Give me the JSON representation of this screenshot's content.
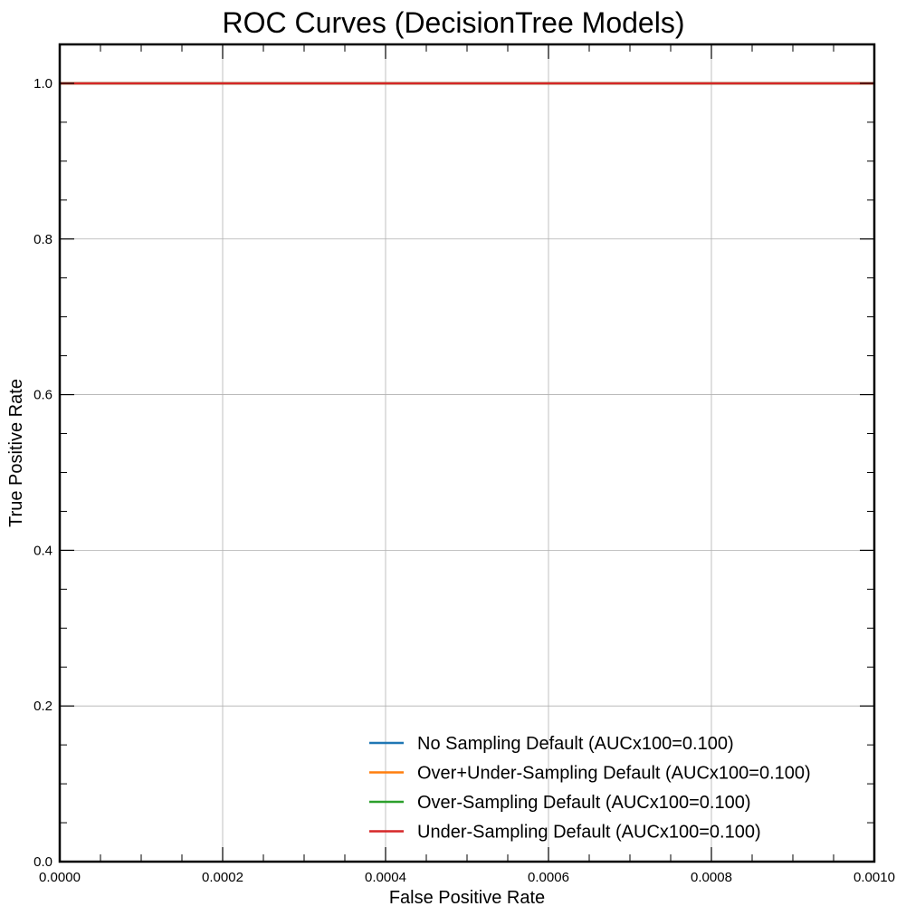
{
  "chart_data": {
    "type": "line",
    "title": "ROC Curves (DecisionTree Models)",
    "xlabel": "False Positive Rate",
    "ylabel": "True Positive Rate",
    "xlim": [
      0.0,
      0.001
    ],
    "ylim": [
      0.0,
      1.05
    ],
    "x_ticks": [
      0.0,
      0.0002,
      0.0004,
      0.0006,
      0.0008,
      0.001
    ],
    "x_tick_labels": [
      "0.0000",
      "0.0002",
      "0.0004",
      "0.0006",
      "0.0008",
      "0.0010"
    ],
    "y_ticks": [
      0.0,
      0.2,
      0.4,
      0.6,
      0.8,
      1.0
    ],
    "y_tick_labels": [
      "0.0",
      "0.2",
      "0.4",
      "0.6",
      "0.8",
      "1.0"
    ],
    "grid": true,
    "legend_position": "lower-right",
    "series": [
      {
        "name": "No Sampling Default (AUCx100=0.100)",
        "color": "#1f77b4",
        "x": [
          0.0,
          0.001
        ],
        "y": [
          1.0,
          1.0
        ]
      },
      {
        "name": "Over+Under-Sampling Default (AUCx100=0.100)",
        "color": "#ff7f0e",
        "x": [
          0.0,
          0.001
        ],
        "y": [
          1.0,
          1.0
        ]
      },
      {
        "name": "Over-Sampling Default (AUCx100=0.100)",
        "color": "#2ca02c",
        "x": [
          0.0,
          0.001
        ],
        "y": [
          1.0,
          1.0
        ]
      },
      {
        "name": "Under-Sampling Default (AUCx100=0.100)",
        "color": "#d62728",
        "x": [
          0.0,
          0.001
        ],
        "y": [
          1.0,
          1.0
        ]
      }
    ]
  }
}
